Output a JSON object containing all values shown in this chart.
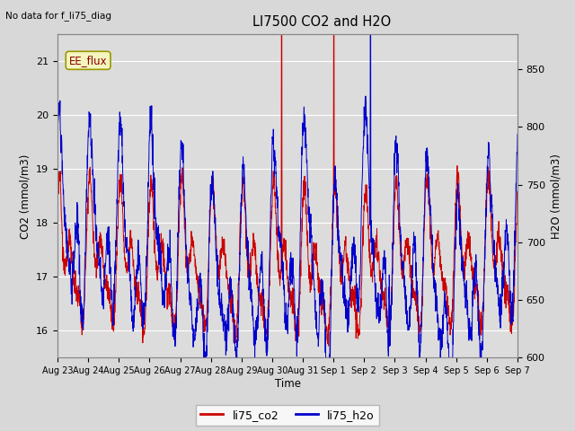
{
  "title": "LI7500 CO2 and H2O",
  "top_left_text": "No data for f_li75_diag",
  "annotation_text": "EE_flux",
  "xlabel": "Time",
  "ylabel_left": "CO2 (mmol/m3)",
  "ylabel_right": "H2O (mmol/m3)",
  "ylim_left": [
    15.5,
    21.5
  ],
  "ylim_right": [
    600,
    880
  ],
  "co2_color": "#cc0000",
  "h2o_color": "#0000cc",
  "fig_bg_color": "#d8d8d8",
  "plot_bg": "#dcdcdc",
  "grid_color": "white",
  "legend_entries": [
    "li75_co2",
    "li75_h2o"
  ],
  "x_tick_labels": [
    "Aug 23",
    "Aug 24",
    "Aug 25",
    "Aug 26",
    "Aug 27",
    "Aug 28",
    "Aug 29",
    "Aug 30",
    "Aug 31",
    "Sep 1",
    "Sep 2",
    "Sep 3",
    "Sep 4",
    "Sep 5",
    "Sep 6",
    "Sep 7"
  ],
  "num_points": 2160,
  "seed": 17
}
